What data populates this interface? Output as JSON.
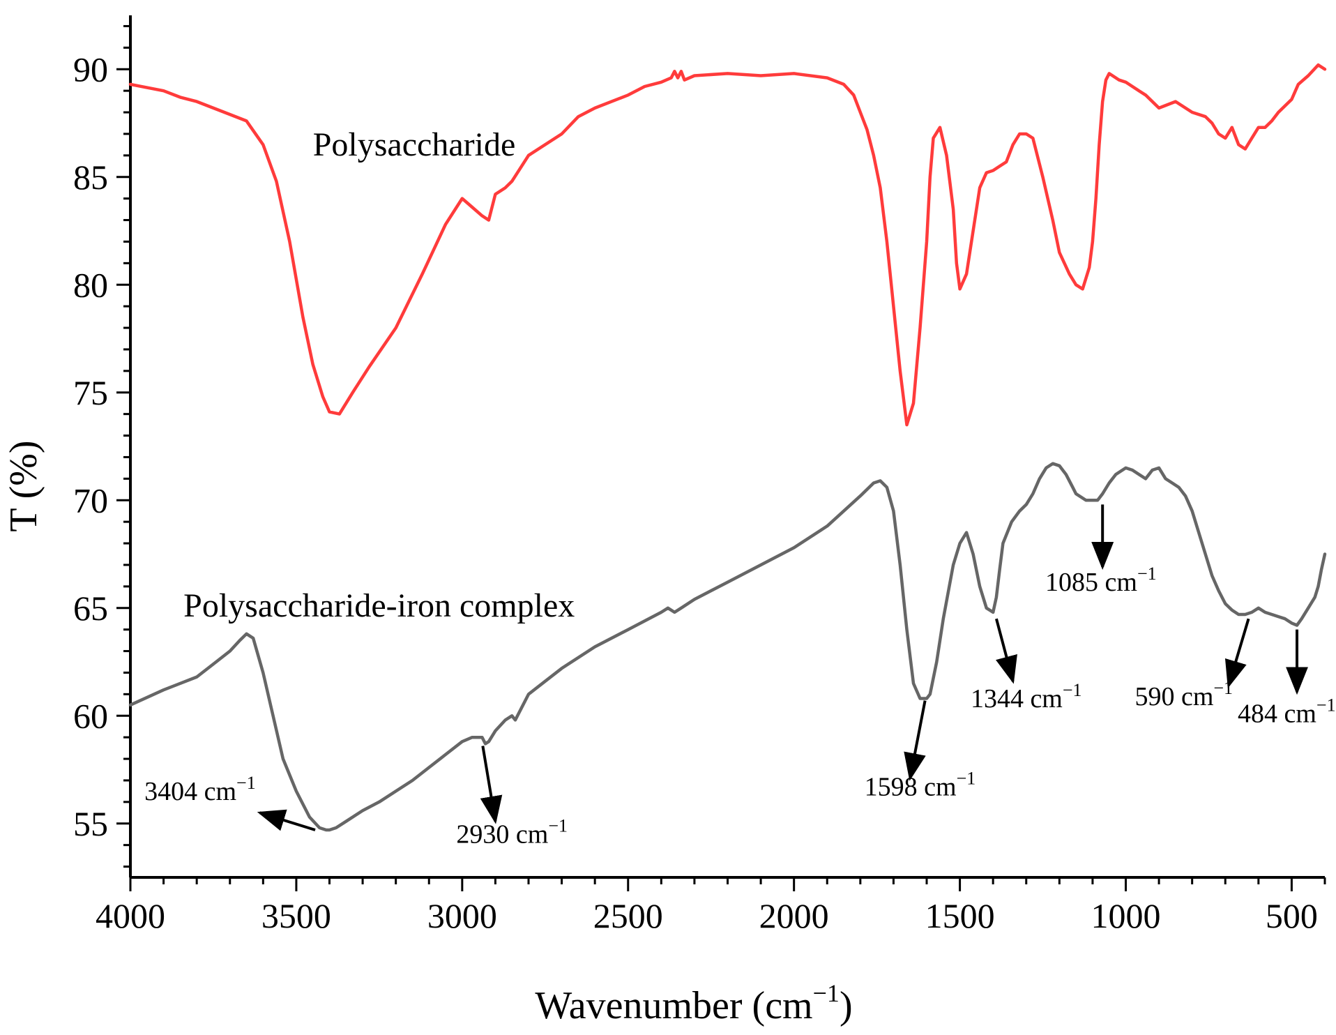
{
  "chart_data": {
    "type": "line",
    "title": "",
    "xlabel": "Wavenumber (cm",
    "xlabel_sup": "−1",
    "xlabel_close": ")",
    "ylabel": "T (%)",
    "xlim": [
      4000,
      400
    ],
    "ylim": [
      52.5,
      92.5
    ],
    "x_ticks": [
      4000,
      3500,
      3000,
      2500,
      2000,
      1500,
      1000,
      500
    ],
    "y_ticks": [
      55,
      60,
      65,
      70,
      75,
      80,
      85,
      90
    ],
    "x_tick_labels": [
      "4000",
      "3500",
      "3000",
      "2500",
      "2000",
      "1500",
      "1000",
      "500"
    ],
    "y_tick_labels": [
      "55",
      "60",
      "65",
      "70",
      "75",
      "80",
      "85",
      "90"
    ],
    "grid": false,
    "series": [
      {
        "name": "Polysaccharide",
        "color": "#ff3b3b",
        "label_at": [
          3450,
          86.0
        ],
        "x": [
          4000,
          3900,
          3850,
          3800,
          3750,
          3700,
          3650,
          3600,
          3560,
          3520,
          3480,
          3450,
          3420,
          3400,
          3370,
          3330,
          3280,
          3200,
          3120,
          3050,
          3000,
          2970,
          2940,
          2920,
          2900,
          2870,
          2850,
          2800,
          2750,
          2700,
          2650,
          2600,
          2500,
          2450,
          2400,
          2370,
          2360,
          2350,
          2340,
          2330,
          2300,
          2200,
          2100,
          2000,
          1900,
          1850,
          1820,
          1800,
          1780,
          1760,
          1740,
          1720,
          1700,
          1680,
          1660,
          1640,
          1620,
          1600,
          1590,
          1580,
          1560,
          1540,
          1520,
          1510,
          1500,
          1480,
          1460,
          1440,
          1420,
          1400,
          1380,
          1360,
          1340,
          1320,
          1300,
          1280,
          1250,
          1220,
          1200,
          1170,
          1150,
          1130,
          1120,
          1110,
          1100,
          1090,
          1080,
          1070,
          1060,
          1050,
          1040,
          1020,
          1000,
          980,
          960,
          940,
          920,
          900,
          850,
          800,
          760,
          740,
          720,
          700,
          680,
          660,
          640,
          620,
          600,
          580,
          560,
          540,
          500,
          480,
          450,
          420,
          400
        ],
        "y": [
          89.3,
          89.0,
          88.7,
          88.5,
          88.2,
          87.9,
          87.6,
          86.5,
          84.8,
          82.0,
          78.5,
          76.3,
          74.8,
          74.1,
          74.0,
          75.0,
          76.2,
          78.0,
          80.5,
          82.8,
          84.0,
          83.6,
          83.2,
          83.0,
          84.2,
          84.5,
          84.8,
          86.0,
          86.5,
          87.0,
          87.8,
          88.2,
          88.8,
          89.2,
          89.4,
          89.6,
          89.9,
          89.6,
          89.9,
          89.5,
          89.7,
          89.8,
          89.7,
          89.8,
          89.6,
          89.3,
          88.8,
          88.0,
          87.2,
          86.0,
          84.5,
          82.0,
          79.0,
          76.0,
          73.5,
          74.5,
          78.0,
          82.0,
          85.0,
          86.8,
          87.3,
          86.0,
          83.5,
          81.0,
          79.8,
          80.5,
          82.5,
          84.5,
          85.2,
          85.3,
          85.5,
          85.7,
          86.5,
          87.0,
          87.0,
          86.8,
          85.0,
          83.0,
          81.5,
          80.5,
          80.0,
          79.8,
          80.3,
          80.8,
          82.0,
          84.0,
          86.5,
          88.5,
          89.5,
          89.8,
          89.7,
          89.5,
          89.4,
          89.2,
          89.0,
          88.8,
          88.5,
          88.2,
          88.5,
          88.0,
          87.8,
          87.5,
          87.0,
          86.8,
          87.3,
          86.5,
          86.3,
          86.8,
          87.3,
          87.3,
          87.6,
          88.0,
          88.6,
          89.3,
          89.7,
          90.2,
          90.0
        ]
      },
      {
        "name": "Polysaccharide-iron complex",
        "color": "#666666",
        "label_at": [
          3840,
          64.6
        ],
        "x": [
          4000,
          3900,
          3800,
          3750,
          3700,
          3670,
          3650,
          3630,
          3600,
          3570,
          3540,
          3500,
          3460,
          3430,
          3410,
          3400,
          3380,
          3350,
          3300,
          3250,
          3200,
          3150,
          3100,
          3050,
          3000,
          2970,
          2940,
          2930,
          2920,
          2900,
          2870,
          2850,
          2840,
          2800,
          2750,
          2700,
          2600,
          2500,
          2400,
          2380,
          2360,
          2340,
          2300,
          2200,
          2100,
          2000,
          1900,
          1800,
          1760,
          1740,
          1720,
          1700,
          1680,
          1660,
          1640,
          1620,
          1600,
          1590,
          1570,
          1550,
          1520,
          1500,
          1480,
          1460,
          1440,
          1420,
          1400,
          1390,
          1380,
          1370,
          1344,
          1320,
          1300,
          1280,
          1260,
          1240,
          1220,
          1200,
          1180,
          1160,
          1150,
          1120,
          1100,
          1085,
          1070,
          1050,
          1030,
          1000,
          980,
          960,
          940,
          920,
          900,
          880,
          860,
          840,
          820,
          800,
          780,
          760,
          740,
          720,
          700,
          680,
          660,
          640,
          620,
          600,
          580,
          560,
          540,
          520,
          500,
          484,
          470,
          450,
          430,
          420,
          410,
          400
        ],
        "y": [
          60.5,
          61.2,
          61.8,
          62.4,
          63.0,
          63.5,
          63.8,
          63.6,
          62.0,
          60.0,
          58.0,
          56.5,
          55.3,
          54.8,
          54.7,
          54.7,
          54.8,
          55.1,
          55.6,
          56.0,
          56.5,
          57.0,
          57.6,
          58.2,
          58.8,
          59.0,
          59.0,
          58.7,
          58.8,
          59.3,
          59.8,
          60.0,
          59.8,
          61.0,
          61.6,
          62.2,
          63.2,
          64.0,
          64.8,
          65.0,
          64.8,
          65.0,
          65.4,
          66.2,
          67.0,
          67.8,
          68.8,
          70.2,
          70.8,
          70.9,
          70.6,
          69.5,
          67.0,
          64.0,
          61.5,
          60.8,
          60.8,
          61.0,
          62.5,
          64.5,
          67.0,
          68.0,
          68.5,
          67.5,
          66.0,
          65.0,
          64.8,
          65.5,
          66.8,
          68.0,
          69.0,
          69.5,
          69.8,
          70.3,
          71.0,
          71.5,
          71.7,
          71.6,
          71.2,
          70.6,
          70.3,
          70.0,
          70.0,
          70.0,
          70.3,
          70.8,
          71.2,
          71.5,
          71.4,
          71.2,
          71.0,
          71.4,
          71.5,
          71.0,
          70.8,
          70.6,
          70.2,
          69.5,
          68.5,
          67.5,
          66.5,
          65.8,
          65.2,
          64.9,
          64.7,
          64.7,
          64.8,
          65.0,
          64.8,
          64.7,
          64.6,
          64.5,
          64.3,
          64.2,
          64.5,
          65.0,
          65.5,
          66.0,
          66.8,
          67.5
        ]
      }
    ],
    "annotations": [
      {
        "label": "3404 cm",
        "sup": "−1",
        "arrow_from": [
          3443,
          54.7
        ],
        "arrow_to": [
          3610,
          55.5
        ],
        "text_at": [
          3790,
          56.1
        ]
      },
      {
        "label": "2930 cm",
        "sup": "−1",
        "arrow_from": [
          2938,
          58.6
        ],
        "arrow_to": [
          2900,
          55.1
        ],
        "text_at": [
          2850,
          54.1
        ]
      },
      {
        "label": "1598 cm",
        "sup": "−1",
        "arrow_from": [
          1605,
          60.7
        ],
        "arrow_to": [
          1650,
          57.1
        ],
        "text_at": [
          1620,
          56.3
        ]
      },
      {
        "label": "1344 cm",
        "sup": "−1",
        "arrow_from": [
          1390,
          64.5
        ],
        "arrow_to": [
          1340,
          61.6
        ],
        "text_at": [
          1300,
          60.4
        ]
      },
      {
        "label": "1085 cm",
        "sup": "−1",
        "arrow_from": [
          1070,
          69.8
        ],
        "arrow_to": [
          1070,
          66.9
        ],
        "text_at": [
          1075,
          65.8
        ]
      },
      {
        "label": "590 cm",
        "sup": "−1",
        "arrow_from": [
          630,
          64.5
        ],
        "arrow_to": [
          690,
          61.4
        ],
        "text_at": [
          825,
          60.5
        ]
      },
      {
        "label": "484 cm",
        "sup": "−1",
        "arrow_from": [
          484,
          64.0
        ],
        "arrow_to": [
          484,
          61.1
        ],
        "text_at": [
          515,
          59.7
        ]
      }
    ]
  }
}
